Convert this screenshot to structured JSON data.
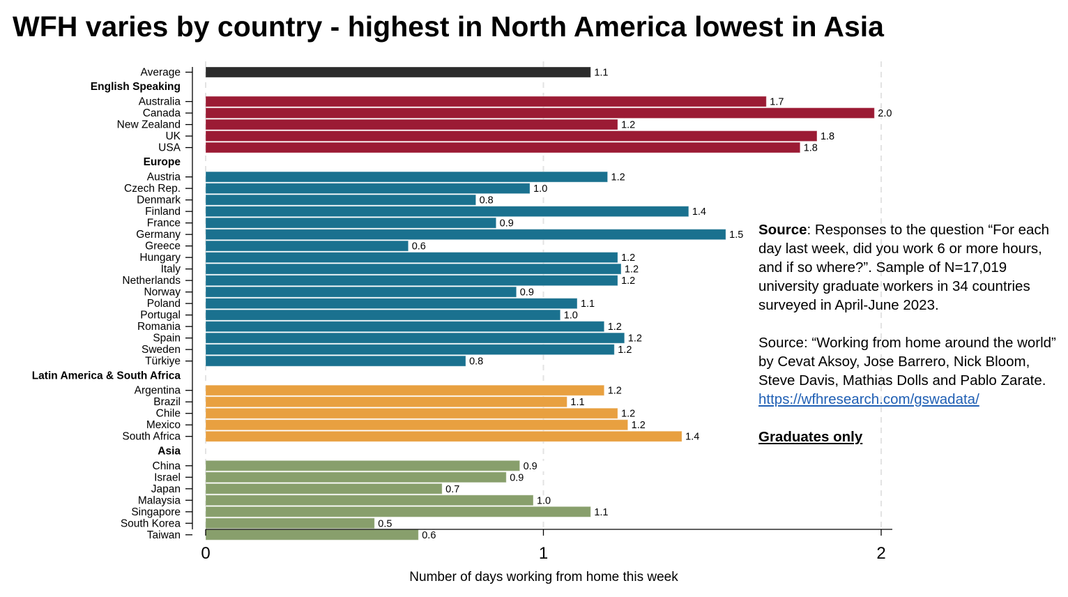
{
  "title": "WFH varies by country - highest in North America lowest in Asia",
  "note": {
    "source_label": "Source",
    "source_text": ": Responses to the question “For each day last week, did you work 6 or more hours, and if so where?”. Sample of N=17,019 university graduate workers in 34 countries surveyed in April-June 2023.",
    "citation": "Source: “Working from home around the world” by Cevat Aksoy, Jose Barrero, Nick Bloom, Steve Davis, Mathias Dolls and Pablo Zarate.",
    "link": "https://wfhresearch.com/gswadata/",
    "footer": "Graduates only"
  },
  "colors": {
    "Average": "#2b2b2b",
    "English Speaking": "#9b1b34",
    "Europe": "#1a718f",
    "Latin America & South Africa": "#e8a040",
    "Asia": "#889f6c"
  },
  "chart_data": {
    "type": "bar",
    "orientation": "horizontal",
    "xlabel": "Number of days working from home this week",
    "ylabel": "",
    "xlim": [
      0,
      2
    ],
    "xticks": [
      0,
      1,
      2
    ],
    "grid": "vertical dashed",
    "groups": [
      {
        "name": "",
        "color_key": "Average",
        "items": [
          {
            "label": "Average",
            "value": 1.14,
            "value_label": "1.1"
          }
        ]
      },
      {
        "name": "English Speaking",
        "color_key": "English Speaking",
        "items": [
          {
            "label": "Australia",
            "value": 1.66,
            "value_label": "1.7"
          },
          {
            "label": "Canada",
            "value": 1.98,
            "value_label": "2.0"
          },
          {
            "label": "New Zealand",
            "value": 1.22,
            "value_label": "1.2"
          },
          {
            "label": "UK",
            "value": 1.81,
            "value_label": "1.8"
          },
          {
            "label": "USA",
            "value": 1.76,
            "value_label": "1.8"
          }
        ]
      },
      {
        "name": "Europe",
        "color_key": "Europe",
        "items": [
          {
            "label": "Austria",
            "value": 1.19,
            "value_label": "1.2"
          },
          {
            "label": "Czech Rep.",
            "value": 0.96,
            "value_label": "1.0"
          },
          {
            "label": "Denmark",
            "value": 0.8,
            "value_label": "0.8"
          },
          {
            "label": "Finland",
            "value": 1.43,
            "value_label": "1.4"
          },
          {
            "label": "France",
            "value": 0.86,
            "value_label": "0.9"
          },
          {
            "label": "Germany",
            "value": 1.54,
            "value_label": "1.5"
          },
          {
            "label": "Greece",
            "value": 0.6,
            "value_label": "0.6"
          },
          {
            "label": "Hungary",
            "value": 1.22,
            "value_label": "1.2"
          },
          {
            "label": "Italy",
            "value": 1.23,
            "value_label": "1.2"
          },
          {
            "label": "Netherlands",
            "value": 1.22,
            "value_label": "1.2"
          },
          {
            "label": "Norway",
            "value": 0.92,
            "value_label": "0.9"
          },
          {
            "label": "Poland",
            "value": 1.1,
            "value_label": "1.1"
          },
          {
            "label": "Portugal",
            "value": 1.05,
            "value_label": "1.0"
          },
          {
            "label": "Romania",
            "value": 1.18,
            "value_label": "1.2"
          },
          {
            "label": "Spain",
            "value": 1.24,
            "value_label": "1.2"
          },
          {
            "label": "Sweden",
            "value": 1.21,
            "value_label": "1.2"
          },
          {
            "label": "Türkiye",
            "value": 0.77,
            "value_label": "0.8"
          }
        ]
      },
      {
        "name": "Latin America & South Africa",
        "color_key": "Latin America & South Africa",
        "items": [
          {
            "label": "Argentina",
            "value": 1.18,
            "value_label": "1.2"
          },
          {
            "label": "Brazil",
            "value": 1.07,
            "value_label": "1.1"
          },
          {
            "label": "Chile",
            "value": 1.22,
            "value_label": "1.2"
          },
          {
            "label": "Mexico",
            "value": 1.25,
            "value_label": "1.2"
          },
          {
            "label": "South Africa",
            "value": 1.41,
            "value_label": "1.4"
          }
        ]
      },
      {
        "name": "Asia",
        "color_key": "Asia",
        "items": [
          {
            "label": "China",
            "value": 0.93,
            "value_label": "0.9"
          },
          {
            "label": "Israel",
            "value": 0.89,
            "value_label": "0.9"
          },
          {
            "label": "Japan",
            "value": 0.7,
            "value_label": "0.7"
          },
          {
            "label": "Malaysia",
            "value": 0.97,
            "value_label": "1.0"
          },
          {
            "label": "Singapore",
            "value": 1.14,
            "value_label": "1.1"
          },
          {
            "label": "South Korea",
            "value": 0.5,
            "value_label": "0.5"
          },
          {
            "label": "Taiwan",
            "value": 0.63,
            "value_label": "0.6"
          }
        ]
      }
    ]
  }
}
